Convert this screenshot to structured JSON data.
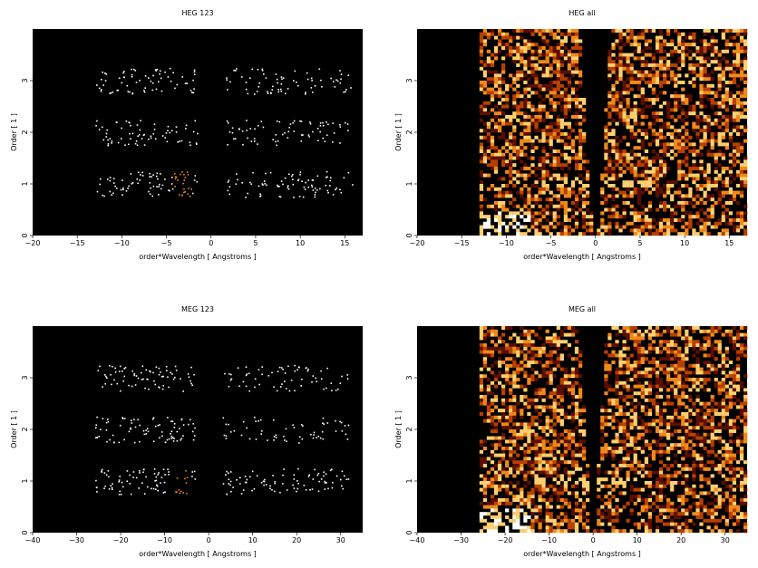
{
  "chart_data": [
    {
      "type": "heatmap",
      "title": "HEG 123",
      "xlabel": "order*Wavelength [ Angstroms ]",
      "ylabel": "Order [ 1 ]",
      "xlim": [
        -20,
        17
      ],
      "ylim": [
        0,
        4
      ],
      "xticks": [
        -20,
        -15,
        -10,
        -5,
        0,
        5,
        10,
        15
      ],
      "yticks": [
        0,
        1,
        2,
        3
      ],
      "max_wavelength": 13,
      "orders": [
        1,
        2,
        3
      ],
      "colormap": [
        "#000000",
        "#5a0f00",
        "#b84000",
        "#f08a1a",
        "#ffd070",
        "#ffffff"
      ],
      "style": "sparse"
    },
    {
      "type": "heatmap",
      "title": "HEG all",
      "xlabel": "order*Wavelength [ Angstroms ]",
      "ylabel": "Order [ 1 ]",
      "xlim": [
        -20,
        17
      ],
      "ylim": [
        0,
        4
      ],
      "xticks": [
        -20,
        -15,
        -10,
        -5,
        0,
        5,
        10,
        15
      ],
      "yticks": [
        0,
        1,
        2,
        3
      ],
      "max_wavelength": 13,
      "colormap": [
        "#000000",
        "#5a0f00",
        "#b84000",
        "#f08a1a",
        "#ffd070",
        "#ffffff"
      ],
      "style": "dense"
    },
    {
      "type": "heatmap",
      "title": "MEG 123",
      "xlabel": "order*Wavelength [ Angstroms ]",
      "ylabel": "Order [ 1 ]",
      "xlim": [
        -40,
        35
      ],
      "ylim": [
        0,
        4
      ],
      "xticks": [
        -40,
        -30,
        -20,
        -10,
        0,
        10,
        20,
        30
      ],
      "yticks": [
        0,
        1,
        2,
        3
      ],
      "max_wavelength": 26,
      "orders": [
        1,
        2,
        3
      ],
      "colormap": [
        "#000000",
        "#5a0f00",
        "#b84000",
        "#f08a1a",
        "#ffd070",
        "#ffffff"
      ],
      "style": "sparse"
    },
    {
      "type": "heatmap",
      "title": "MEG all",
      "xlabel": "order*Wavelength [ Angstroms ]",
      "ylabel": "Order [ 1 ]",
      "xlim": [
        -40,
        35
      ],
      "ylim": [
        0,
        4
      ],
      "xticks": [
        -40,
        -30,
        -20,
        -10,
        0,
        10,
        20,
        30
      ],
      "yticks": [
        0,
        1,
        2,
        3
      ],
      "max_wavelength": 26,
      "colormap": [
        "#000000",
        "#5a0f00",
        "#b84000",
        "#f08a1a",
        "#ffd070",
        "#ffffff"
      ],
      "style": "dense"
    }
  ]
}
